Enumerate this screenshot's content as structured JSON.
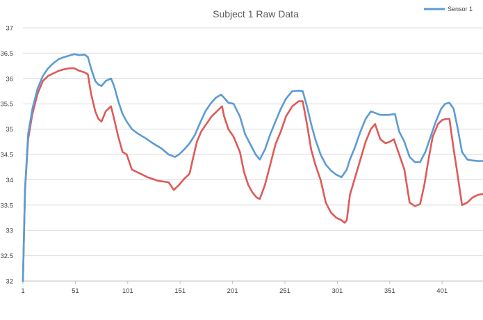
{
  "chart_data": {
    "type": "line",
    "title": "Subject 1 Raw Data",
    "xlabel": "",
    "ylabel": "",
    "xlim": [
      1,
      440
    ],
    "ylim": [
      32,
      37
    ],
    "y_ticks": [
      32,
      32.5,
      33,
      33.5,
      34,
      34.5,
      35,
      35.5,
      36,
      36.5,
      37
    ],
    "y_tick_labels": [
      "32",
      "32.5",
      "33",
      "33.5",
      "34",
      "34.5",
      "35",
      "35.5",
      "36",
      "36.5",
      "37"
    ],
    "x_ticks": [
      1,
      51,
      101,
      151,
      201,
      251,
      301,
      351,
      401
    ],
    "x_tick_labels": [
      "1",
      "51",
      "101",
      "151",
      "201",
      "251",
      "301",
      "351",
      "401"
    ],
    "grid": true,
    "legend_position": "top-right",
    "legend": [
      {
        "name": "Sensor 1",
        "color": "#5b9bd5"
      }
    ],
    "series": [
      {
        "name": "Sensor 1",
        "color": "#5b9bd5",
        "x": [
          1,
          3,
          6,
          10,
          15,
          20,
          25,
          30,
          35,
          40,
          45,
          50,
          55,
          60,
          63,
          66,
          70,
          73,
          76,
          80,
          85,
          88,
          92,
          96,
          100,
          105,
          110,
          118,
          125,
          133,
          140,
          146,
          150,
          155,
          160,
          165,
          170,
          175,
          180,
          185,
          190,
          193,
          197,
          202,
          208,
          213,
          218,
          223,
          227,
          232,
          237,
          242,
          247,
          252,
          258,
          264,
          268,
          272,
          276,
          280,
          285,
          290,
          295,
          300,
          305,
          310,
          313,
          318,
          323,
          328,
          333,
          337,
          342,
          346,
          350,
          356,
          360,
          365,
          370,
          375,
          380,
          385,
          390,
          395,
          400,
          404,
          408,
          412,
          416,
          420,
          425,
          430,
          435,
          440
        ],
        "values": [
          32.0,
          33.8,
          34.9,
          35.4,
          35.8,
          36.05,
          36.2,
          36.3,
          36.38,
          36.42,
          36.45,
          36.48,
          36.46,
          36.47,
          36.42,
          36.2,
          35.95,
          35.88,
          35.85,
          35.95,
          36.0,
          35.85,
          35.55,
          35.3,
          35.15,
          35.0,
          34.92,
          34.82,
          34.72,
          34.62,
          34.5,
          34.45,
          34.5,
          34.6,
          34.72,
          34.88,
          35.12,
          35.35,
          35.5,
          35.62,
          35.68,
          35.62,
          35.52,
          35.5,
          35.25,
          34.9,
          34.7,
          34.5,
          34.4,
          34.6,
          34.9,
          35.15,
          35.4,
          35.6,
          35.75,
          35.76,
          35.75,
          35.45,
          35.1,
          34.8,
          34.5,
          34.3,
          34.18,
          34.1,
          34.05,
          34.2,
          34.4,
          34.65,
          34.95,
          35.2,
          35.35,
          35.32,
          35.28,
          35.28,
          35.28,
          35.3,
          34.95,
          34.75,
          34.45,
          34.35,
          34.35,
          34.55,
          34.85,
          35.15,
          35.4,
          35.5,
          35.52,
          35.4,
          35.0,
          34.55,
          34.4,
          34.38,
          34.37,
          34.37
        ]
      },
      {
        "name": "",
        "color": "#de5a57",
        "x": [
          1,
          3,
          6,
          10,
          15,
          20,
          25,
          30,
          35,
          40,
          45,
          50,
          55,
          60,
          63,
          66,
          70,
          73,
          76,
          80,
          85,
          88,
          92,
          96,
          100,
          105,
          110,
          115,
          120,
          130,
          140,
          145,
          150,
          155,
          160,
          163,
          167,
          171,
          176,
          181,
          186,
          191,
          193,
          197,
          202,
          208,
          212,
          216,
          220,
          224,
          227,
          232,
          237,
          242,
          247,
          252,
          258,
          264,
          268,
          272,
          276,
          280,
          285,
          290,
          295,
          300,
          305,
          308,
          310,
          313,
          318,
          323,
          328,
          333,
          337,
          342,
          347,
          351,
          355,
          360,
          365,
          370,
          375,
          380,
          384,
          388,
          392,
          397,
          401,
          405,
          408,
          412,
          415,
          420,
          425,
          430,
          435,
          440
        ],
        "values": [
          32.0,
          33.8,
          34.8,
          35.3,
          35.7,
          35.95,
          36.05,
          36.1,
          36.15,
          36.18,
          36.2,
          36.2,
          36.15,
          36.12,
          36.08,
          35.7,
          35.35,
          35.2,
          35.15,
          35.35,
          35.45,
          35.2,
          34.85,
          34.55,
          34.5,
          34.2,
          34.15,
          34.1,
          34.05,
          33.98,
          33.95,
          33.8,
          33.9,
          34.02,
          34.12,
          34.4,
          34.75,
          34.95,
          35.1,
          35.25,
          35.35,
          35.45,
          35.25,
          35.0,
          34.85,
          34.55,
          34.15,
          33.9,
          33.75,
          33.65,
          33.62,
          33.9,
          34.3,
          34.7,
          34.95,
          35.25,
          35.45,
          35.55,
          35.55,
          35.1,
          34.6,
          34.3,
          34.0,
          33.55,
          33.35,
          33.25,
          33.2,
          33.15,
          33.2,
          33.7,
          34.05,
          34.4,
          34.75,
          35.0,
          35.1,
          34.8,
          34.72,
          34.75,
          34.8,
          34.5,
          34.2,
          33.55,
          33.48,
          33.52,
          33.9,
          34.4,
          34.85,
          35.1,
          35.18,
          35.2,
          35.2,
          34.6,
          34.2,
          33.5,
          33.55,
          33.65,
          33.7,
          33.72
        ]
      }
    ]
  }
}
